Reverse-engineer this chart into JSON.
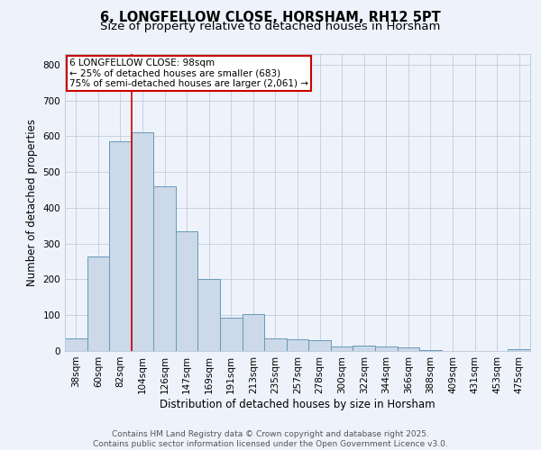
{
  "title": "6, LONGFELLOW CLOSE, HORSHAM, RH12 5PT",
  "subtitle": "Size of property relative to detached houses in Horsham",
  "xlabel": "Distribution of detached houses by size in Horsham",
  "ylabel": "Number of detached properties",
  "categories": [
    "38sqm",
    "60sqm",
    "82sqm",
    "104sqm",
    "126sqm",
    "147sqm",
    "169sqm",
    "191sqm",
    "213sqm",
    "235sqm",
    "257sqm",
    "278sqm",
    "300sqm",
    "322sqm",
    "344sqm",
    "366sqm",
    "388sqm",
    "409sqm",
    "431sqm",
    "453sqm",
    "475sqm"
  ],
  "values": [
    35,
    265,
    585,
    610,
    460,
    335,
    200,
    93,
    103,
    35,
    32,
    30,
    13,
    14,
    13,
    10,
    3,
    0,
    0,
    0,
    5
  ],
  "bar_color": "#ccd9e8",
  "bar_edge_color": "#6699bb",
  "bg_color": "#eef2fa",
  "grid_color": "#c0ccdd",
  "annotation_box_color": "#ffffff",
  "annotation_box_edge": "#cc0000",
  "vline_color": "#cc0000",
  "vline_x_idx": 3,
  "annotation_text_line1": "6 LONGFELLOW CLOSE: 98sqm",
  "annotation_text_line2": "← 25% of detached houses are smaller (683)",
  "annotation_text_line3": "75% of semi-detached houses are larger (2,061) →",
  "ylim": [
    0,
    830
  ],
  "yticks": [
    0,
    100,
    200,
    300,
    400,
    500,
    600,
    700,
    800
  ],
  "footer_line1": "Contains HM Land Registry data © Crown copyright and database right 2025.",
  "footer_line2": "Contains public sector information licensed under the Open Government Licence v3.0.",
  "title_fontsize": 10.5,
  "subtitle_fontsize": 9.5,
  "axis_label_fontsize": 8.5,
  "tick_fontsize": 7.5,
  "annotation_fontsize": 7.5,
  "footer_fontsize": 6.5
}
